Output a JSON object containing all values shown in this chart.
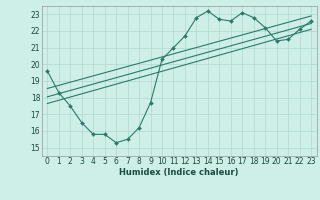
{
  "bg_color": "#ceeee8",
  "grid_color": "#b0d8d0",
  "line_color": "#2a7a6a",
  "xlabel": "Humidex (Indice chaleur)",
  "xlim": [
    -0.5,
    23.5
  ],
  "ylim": [
    14.5,
    23.5
  ],
  "xticks": [
    0,
    1,
    2,
    3,
    4,
    5,
    6,
    7,
    8,
    9,
    10,
    11,
    12,
    13,
    14,
    15,
    16,
    17,
    18,
    19,
    20,
    21,
    22,
    23
  ],
  "yticks": [
    15,
    16,
    17,
    18,
    19,
    20,
    21,
    22,
    23
  ],
  "main_series_x": [
    0,
    1,
    2,
    3,
    4,
    5,
    6,
    7,
    8,
    9,
    10,
    11,
    12,
    13,
    14,
    15,
    16,
    17,
    18,
    19,
    20,
    21,
    22,
    23
  ],
  "main_series_y": [
    19.6,
    18.3,
    17.5,
    16.5,
    15.8,
    15.8,
    15.3,
    15.5,
    16.2,
    17.7,
    20.3,
    21.0,
    21.7,
    22.8,
    23.2,
    22.7,
    22.6,
    23.1,
    22.8,
    22.2,
    21.4,
    21.5,
    22.1,
    22.6
  ],
  "line1_x": [
    0,
    23
  ],
  "line1_y": [
    18.05,
    22.45
  ],
  "line2_x": [
    0,
    23
  ],
  "line2_y": [
    18.55,
    22.9
  ],
  "line3_x": [
    0,
    23
  ],
  "line3_y": [
    17.65,
    22.1
  ]
}
